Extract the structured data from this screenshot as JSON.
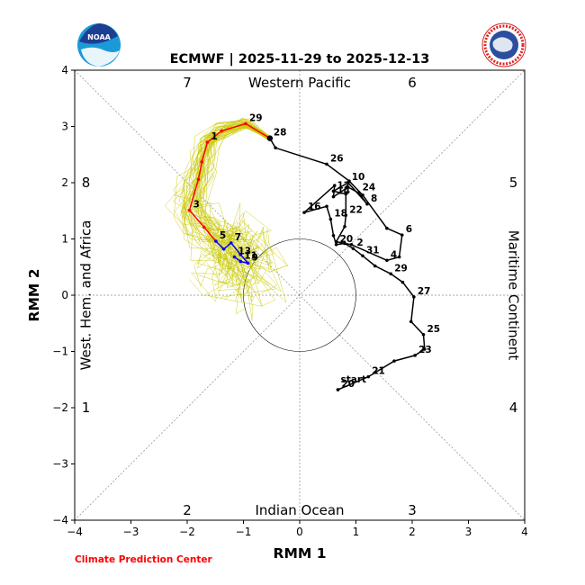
{
  "chart_data": {
    "type": "line",
    "title": "ECMWF | 2025-11-29 to 2025-12-13",
    "xlabel": "RMM 1",
    "ylabel": "RMM 2",
    "xlim": [
      -4,
      4
    ],
    "ylim": [
      -4,
      4
    ],
    "xticks": [
      "−4",
      "−3",
      "−2",
      "−1",
      "0",
      "1",
      "2",
      "3",
      "4"
    ],
    "yticks": [
      "−4",
      "−3",
      "−2",
      "−1",
      "0",
      "1",
      "2",
      "3",
      "4"
    ],
    "regions": {
      "top": "Western Pacific",
      "bottom": "Indian Ocean",
      "left": "West. Hem. and Africa",
      "right": "Maritime Continent"
    },
    "phases": [
      {
        "label": "7",
        "x": -2.0,
        "y": 3.78
      },
      {
        "label": "6",
        "x": 2.0,
        "y": 3.78
      },
      {
        "label": "8",
        "x": -3.8,
        "y": 2.0
      },
      {
        "label": "5",
        "x": 3.8,
        "y": 2.0
      },
      {
        "label": "1",
        "x": -3.8,
        "y": -2.0
      },
      {
        "label": "4",
        "x": 3.8,
        "y": -2.0
      },
      {
        "label": "2",
        "x": -2.0,
        "y": -3.82
      },
      {
        "label": "3",
        "x": 2.0,
        "y": -3.82
      }
    ],
    "observed": {
      "color": "#000000",
      "points": [
        {
          "x": 0.68,
          "y": -1.68,
          "label": "start"
        },
        {
          "x": 0.68,
          "y": -1.68,
          "label": "20"
        },
        {
          "x": 1.22,
          "y": -1.45,
          "label": "21"
        },
        {
          "x": 1.68,
          "y": -1.17,
          "label": ""
        },
        {
          "x": 2.05,
          "y": -1.07,
          "label": "23"
        },
        {
          "x": 2.22,
          "y": -0.96,
          "label": ""
        },
        {
          "x": 2.2,
          "y": -0.7,
          "label": "25"
        },
        {
          "x": 1.98,
          "y": -0.47,
          "label": ""
        },
        {
          "x": 2.03,
          "y": -0.03,
          "label": "27"
        },
        {
          "x": 1.83,
          "y": 0.23,
          "label": ""
        },
        {
          "x": 1.62,
          "y": 0.38,
          "label": "29"
        },
        {
          "x": 1.34,
          "y": 0.52,
          "label": ""
        },
        {
          "x": 1.12,
          "y": 0.7,
          "label": "31"
        },
        {
          "x": 0.95,
          "y": 0.83,
          "label": "2"
        },
        {
          "x": 0.8,
          "y": 0.92,
          "label": ""
        },
        {
          "x": 0.65,
          "y": 0.9,
          "label": "20"
        },
        {
          "x": 0.6,
          "y": 1.06,
          "label": ""
        },
        {
          "x": 0.55,
          "y": 1.35,
          "label": "18"
        },
        {
          "x": 0.48,
          "y": 1.58,
          "label": ""
        },
        {
          "x": 0.08,
          "y": 1.47,
          "label": "16"
        },
        {
          "x": 0.62,
          "y": 1.95,
          "label": ""
        },
        {
          "x": 0.6,
          "y": 1.75,
          "label": "14"
        },
        {
          "x": 0.86,
          "y": 1.92,
          "label": ""
        },
        {
          "x": 1.05,
          "y": 1.82,
          "label": "24"
        },
        {
          "x": 1.2,
          "y": 1.62,
          "label": "8"
        },
        {
          "x": 0.86,
          "y": 2.0,
          "label": "10"
        },
        {
          "x": 0.6,
          "y": 1.85,
          "label": "12"
        },
        {
          "x": 0.82,
          "y": 1.8,
          "label": ""
        },
        {
          "x": 0.82,
          "y": 1.42,
          "label": "22"
        },
        {
          "x": 0.8,
          "y": 1.22,
          "label": ""
        },
        {
          "x": 0.65,
          "y": 0.95,
          "label": ""
        },
        {
          "x": 0.92,
          "y": 0.9,
          "label": ""
        },
        {
          "x": 1.55,
          "y": 0.62,
          "label": "4"
        },
        {
          "x": 1.77,
          "y": 0.68,
          "label": ""
        },
        {
          "x": 1.82,
          "y": 1.07,
          "label": "6"
        },
        {
          "x": 1.55,
          "y": 1.19,
          "label": ""
        },
        {
          "x": 1.12,
          "y": 1.78,
          "label": ""
        },
        {
          "x": 0.88,
          "y": 2.03,
          "label": ""
        },
        {
          "x": 0.48,
          "y": 2.33,
          "label": "26"
        },
        {
          "x": -0.43,
          "y": 2.62,
          "label": ""
        },
        {
          "x": -0.53,
          "y": 2.79,
          "label": "28"
        }
      ]
    },
    "forecast_red": {
      "color": "#ff0000",
      "points": [
        {
          "x": -0.53,
          "y": 2.79,
          "label": ""
        },
        {
          "x": -0.96,
          "y": 3.05,
          "label": "29"
        },
        {
          "x": -1.39,
          "y": 2.92,
          "label": ""
        },
        {
          "x": -1.64,
          "y": 2.72,
          "label": "1"
        },
        {
          "x": -1.74,
          "y": 2.37,
          "label": ""
        },
        {
          "x": -1.8,
          "y": 2.06,
          "label": ""
        },
        {
          "x": -1.96,
          "y": 1.51,
          "label": "3"
        },
        {
          "x": -1.7,
          "y": 1.21,
          "label": ""
        },
        {
          "x": -1.49,
          "y": 0.96,
          "label": ""
        }
      ]
    },
    "forecast_blue": {
      "color": "#0000ff",
      "points": [
        {
          "x": -1.49,
          "y": 0.96,
          "label": "5"
        },
        {
          "x": -1.35,
          "y": 0.82,
          "label": ""
        },
        {
          "x": -1.22,
          "y": 0.93,
          "label": "7"
        },
        {
          "x": -1.05,
          "y": 0.72,
          "label": ""
        },
        {
          "x": -0.92,
          "y": 0.57,
          "label": "9"
        },
        {
          "x": -1.05,
          "y": 0.6,
          "label": "11"
        },
        {
          "x": -1.16,
          "y": 0.68,
          "label": "13"
        }
      ]
    },
    "ensemble": {
      "color": "#c8c800",
      "members": 51,
      "description": "ECMWF ensemble member trajectories"
    },
    "unit_circle_radius": 1,
    "grid": "dashed diagonals and axes through origin"
  },
  "logos": {
    "left": "NOAA",
    "right": "NATIONAL WEATHER SERVICE"
  },
  "credit": "Climate Prediction Center"
}
